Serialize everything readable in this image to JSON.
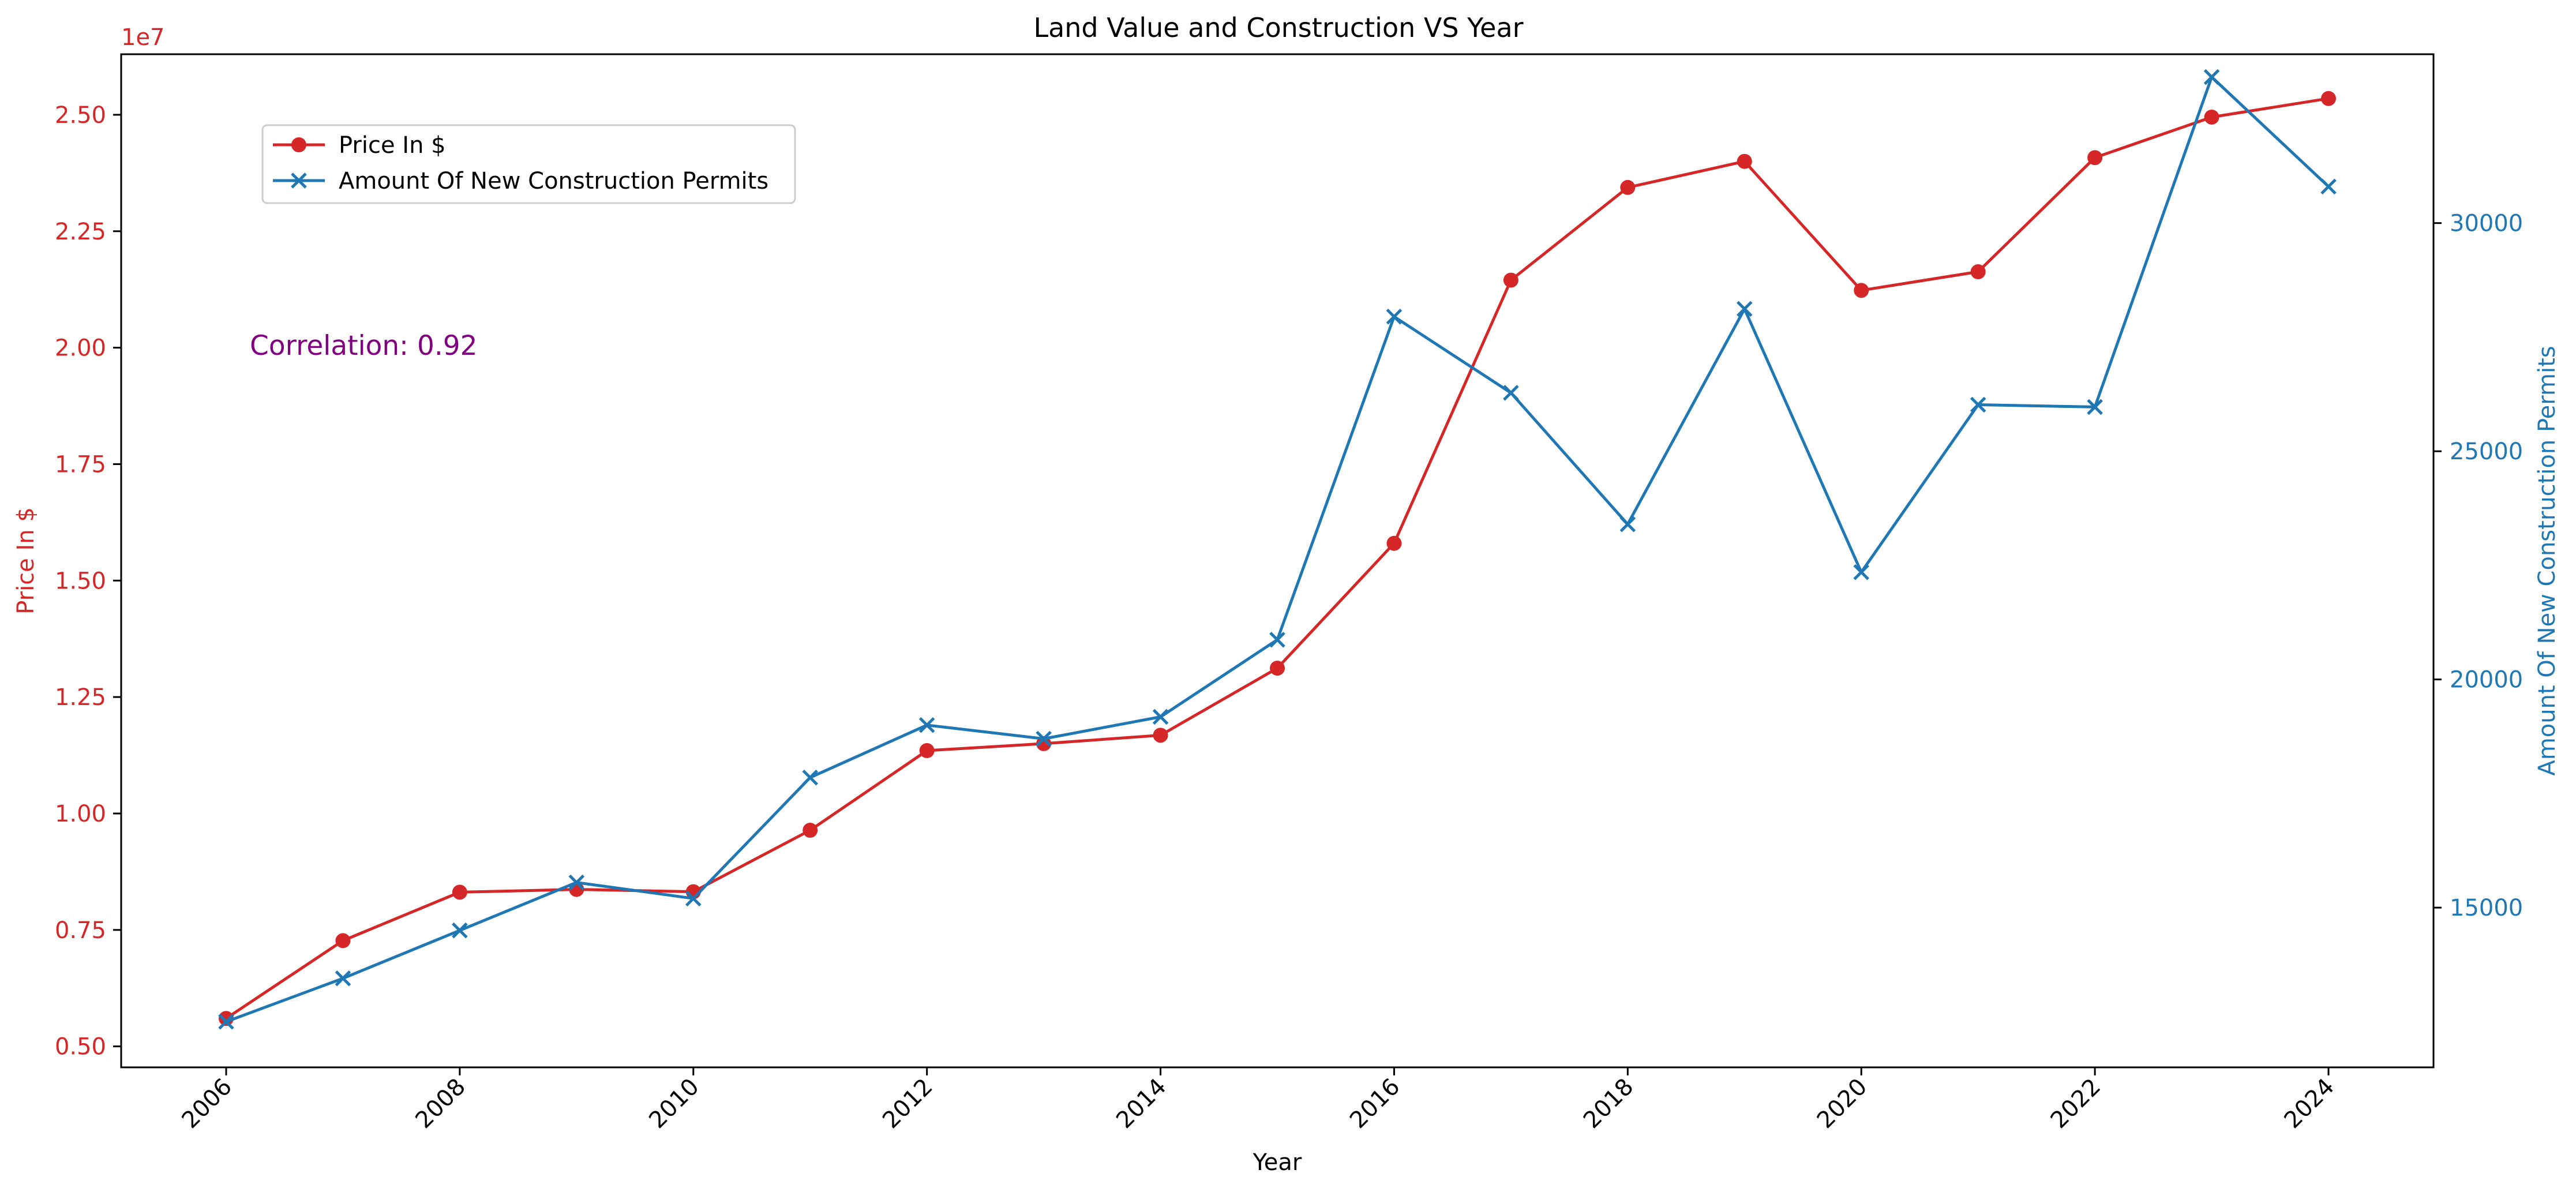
{
  "chart_data": {
    "type": "line",
    "title": "Land Value and Construction VS Year",
    "xlabel": "Year",
    "x": [
      2006,
      2007,
      2008,
      2009,
      2010,
      2011,
      2012,
      2013,
      2014,
      2015,
      2016,
      2017,
      2018,
      2019,
      2020,
      2021,
      2022,
      2023,
      2024
    ],
    "xticks": [
      "2006",
      "2008",
      "2010",
      "2012",
      "2014",
      "2016",
      "2018",
      "2020",
      "2022",
      "2024"
    ],
    "left_axis": {
      "label": "Price In $",
      "color": "#d62728",
      "ylim": [
        4550000.0,
        26300000.0
      ],
      "ticks": [
        5000000.0,
        7500000.0,
        10000000.0,
        12500000.0,
        15000000.0,
        17500000.0,
        20000000.0,
        22500000.0,
        25000000.0
      ],
      "ticklabels": [
        "0.50",
        "0.75",
        "1.00",
        "1.25",
        "1.50",
        "1.75",
        "2.00",
        "2.25",
        "2.50"
      ],
      "offset_text": "1e7"
    },
    "right_axis": {
      "label": "Amount Of New Construction Permits",
      "color": "#1f77b4",
      "ylim": [
        11500,
        33700
      ],
      "ticks": [
        15000,
        20000,
        25000,
        30000
      ],
      "ticklabels": [
        "15000",
        "20000",
        "25000",
        "30000"
      ]
    },
    "series": [
      {
        "name": "Price In $",
        "axis": "left",
        "marker": "circle",
        "color": "#d62728",
        "values": [
          5600000,
          7270000,
          8310000,
          8370000,
          8320000,
          9640000,
          11350000,
          11500000,
          11680000,
          13120000,
          15800000,
          21450000,
          23440000,
          24000000,
          21230000,
          21630000,
          24080000,
          24950000,
          25350000
        ]
      },
      {
        "name": "Amount Of New Construction Permits",
        "axis": "right",
        "marker": "x",
        "color": "#1f77b4",
        "values": [
          12500,
          13450,
          14500,
          15550,
          15200,
          17850,
          19000,
          18700,
          19180,
          20870,
          27950,
          26280,
          23400,
          28120,
          22350,
          26020,
          25970,
          33200,
          30800
        ]
      }
    ],
    "legend_position": "upper-left",
    "annotation": {
      "text": "Correlation: 0.92",
      "color": "#800080"
    }
  }
}
